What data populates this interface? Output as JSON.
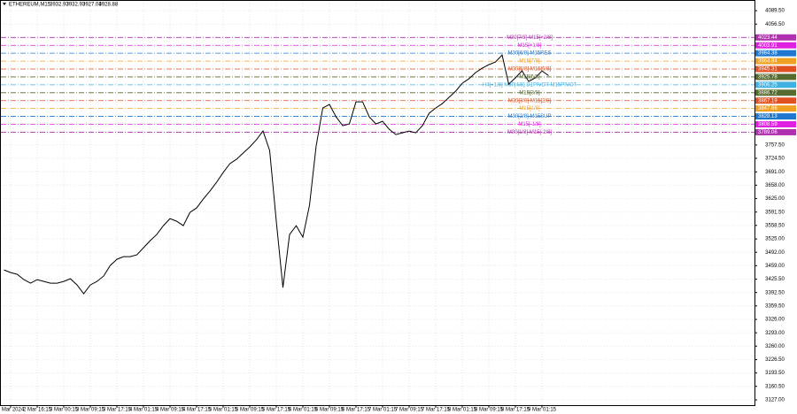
{
  "chart_data": {
    "type": "line",
    "symbol": "ETHEREUM,M15",
    "ohlc": [
      3932.93,
      3932.93,
      3927.04,
      3928.88
    ],
    "categories": [
      null,
      "2 Mar 2024",
      null,
      null,
      null,
      "2 Mar 16:15",
      null,
      null,
      null,
      "3 Mar 00:15",
      null,
      null,
      null,
      "3 Mar 09:15",
      null,
      null,
      null,
      "3 Mar 17:15",
      null,
      null,
      null,
      "4 Mar 01:15",
      null,
      null,
      null,
      "4 Mar 09:15",
      null,
      null,
      null,
      "4 Mar 17:15",
      null,
      null,
      null,
      "5 Mar 01:15",
      null,
      null,
      null,
      "5 Mar 09:15",
      null,
      null,
      null,
      "5 Mar 17:15",
      null,
      null,
      null,
      "6 Mar 01:15",
      null,
      null,
      null,
      "6 Mar 09:15",
      null,
      null,
      null,
      "6 Mar 17:15",
      null,
      null,
      null,
      "7 Mar 01:15",
      null,
      null,
      null,
      "7 Mar 09:15",
      null,
      null,
      null,
      "7 Mar 17:15",
      null,
      null,
      null,
      "8 Mar 01:15",
      null,
      null,
      null,
      "8 Mar 09:15",
      null,
      null,
      null,
      "8 Mar 17:15",
      null,
      null,
      null,
      "9 Mar 01:15",
      null
    ],
    "series": [
      {
        "color": "#000000",
        "values": [
          3448.6,
          3442.0,
          3437.6,
          3424.5,
          3415.8,
          3424.5,
          3420.1,
          3415.8,
          3415.8,
          3420.1,
          3426.7,
          3411.4,
          3389.5,
          3411.4,
          3420.1,
          3433.3,
          3459.5,
          3474.8,
          3481.4,
          3481.4,
          3485.8,
          3503.3,
          3520.8,
          3536.1,
          3558.0,
          3575.4,
          3568.9,
          3558.0,
          3590.8,
          3601.7,
          3623.6,
          3643.3,
          3665.1,
          3689.2,
          3711.0,
          3722.0,
          3737.3,
          3752.6,
          3770.1,
          3792.0,
          3743.9,
          3568.9,
          3404.8,
          3536.1,
          3558.0,
          3529.5,
          3608.3,
          3754.8,
          3848.9,
          3857.6,
          3827.0,
          3805.1,
          3809.5,
          3864.2,
          3864.2,
          3827.0,
          3809.5,
          3816.1,
          3796.4,
          3783.3,
          3787.6,
          3792.0,
          3787.6,
          3805.1,
          3835.8,
          3848.9,
          3859.8,
          3875.1,
          3890.4,
          3910.1,
          3921.1,
          3936.4,
          3947.3,
          3956.1,
          3962.6,
          3980.1,
          3907.9,
          3923.4,
          3940.8,
          3914.5,
          3923.4,
          3940.8,
          3928.9
        ]
      }
    ],
    "levels": [
      {
        "label": "M30[7/8] M15[+2/8]",
        "value": 4023.44,
        "color": "#b030b0"
      },
      {
        "label": "M15[+1/8]",
        "value": 4003.91,
        "color": "#e020e0"
      },
      {
        "label": "M30[6/8] M15RES",
        "value": 3984.38,
        "color": "#1e78d0"
      },
      {
        "label": "M15[7/8]",
        "value": 3964.84,
        "color": "#f0a020"
      },
      {
        "label": "M30[5/8] M15[6/8]",
        "value": 3945.31,
        "color": "#e05020"
      },
      {
        "label": "M15[5/8]",
        "value": 3925.78,
        "color": "#556b2f"
      },
      {
        "label": "H4[+1/8] M30[4/8] D1PIVOT M15PIVOT",
        "value": 3906.25,
        "color": "#40b0e0"
      },
      {
        "label": "M15[3/8]",
        "value": 3886.72,
        "color": "#556b2f"
      },
      {
        "label": "M30[3/8] M15[2/8]",
        "value": 3867.19,
        "color": "#e05020"
      },
      {
        "label": "M15[1/8]",
        "value": 3847.66,
        "color": "#f0a020"
      },
      {
        "label": "M30[2/8] M15SUP",
        "value": 3828.13,
        "color": "#1e78d0"
      },
      {
        "label": "M15[-1/8]",
        "value": 3808.59,
        "color": "#e020e0"
      },
      {
        "label": "M30[1/8] M15[-2/8]",
        "value": 3789.06,
        "color": "#b030b0"
      }
    ],
    "ylim": [
      3114,
      4116
    ],
    "yticks": [
      {
        "value": 4089.5,
        "label": "4089.50"
      },
      {
        "value": 4056.5,
        "label": "4056.50"
      },
      {
        "value": 3757.5,
        "label": "3757.50"
      },
      {
        "value": 3724.5,
        "label": "3724.50"
      },
      {
        "value": 3691,
        "label": "3691.00"
      },
      {
        "value": 3658,
        "label": "3658.00"
      },
      {
        "value": 3625,
        "label": "3625.00"
      },
      {
        "value": 3591.5,
        "label": "3591.50"
      },
      {
        "value": 3558.5,
        "label": "3558.50"
      },
      {
        "value": 3525,
        "label": "3525.00"
      },
      {
        "value": 3492,
        "label": "3492.00"
      },
      {
        "value": 3459,
        "label": "3459.00"
      },
      {
        "value": 3425.5,
        "label": "3425.50"
      },
      {
        "value": 3392.5,
        "label": "3392.50"
      },
      {
        "value": 3359.5,
        "label": "3359.50"
      },
      {
        "value": 3326,
        "label": "3326.00"
      },
      {
        "value": 3293,
        "label": "3293.00"
      },
      {
        "value": 3260,
        "label": "3260.00"
      },
      {
        "value": 3226.5,
        "label": "3226.50"
      },
      {
        "value": 3193.5,
        "label": "3193.50"
      },
      {
        "value": 3160.5,
        "label": "3160.50"
      },
      {
        "value": 3127,
        "label": "3127.00"
      }
    ],
    "grid": true
  }
}
